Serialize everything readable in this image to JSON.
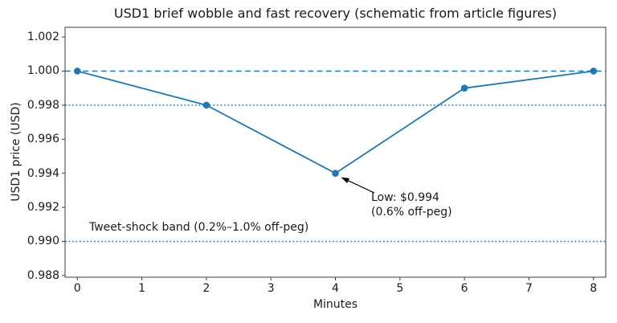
{
  "chart_data": {
    "type": "line",
    "title": "USD1 brief wobble and fast recovery (schematic from article figures)",
    "xlabel": "Minutes",
    "ylabel": "USD1 price (USD)",
    "x": [
      0,
      2,
      4,
      6,
      8
    ],
    "y": [
      1.0,
      0.998,
      0.994,
      0.999,
      1.0
    ],
    "series_color": "#1f77b4",
    "marker": "circle",
    "grid": false,
    "legend": null,
    "x_ticks": [
      0,
      1,
      2,
      3,
      4,
      5,
      6,
      7,
      8
    ],
    "x_tick_labels": [
      "0",
      "1",
      "2",
      "3",
      "4",
      "5",
      "6",
      "7",
      "8"
    ],
    "y_ticks": [
      1.002,
      1.0,
      0.998,
      0.996,
      0.994,
      0.992,
      0.99,
      0.988
    ],
    "y_tick_labels": [
      "1.002",
      "1.000",
      "0.998",
      "0.996",
      "0.994",
      "0.992",
      "0.990",
      "0.988"
    ],
    "x_range": [
      -0.19,
      8.19
    ],
    "y_range": [
      0.9879,
      1.00257
    ],
    "reference_lines": [
      {
        "name": "peg-line",
        "y": 1.0,
        "style": "dashed",
        "color": "#1f77b4"
      },
      {
        "name": "band-upper",
        "y": 0.998,
        "style": "dotted",
        "color": "#1f77b4"
      },
      {
        "name": "band-lower",
        "y": 0.99,
        "style": "dotted",
        "color": "#1f77b4"
      }
    ],
    "annotation": {
      "text_line1": "Low: $0.994",
      "text_line2": "(0.6% off-peg)",
      "xy": [
        4,
        0.994
      ]
    },
    "band_label": "Tweet-shock band (0.2%–1.0% off-peg)"
  }
}
